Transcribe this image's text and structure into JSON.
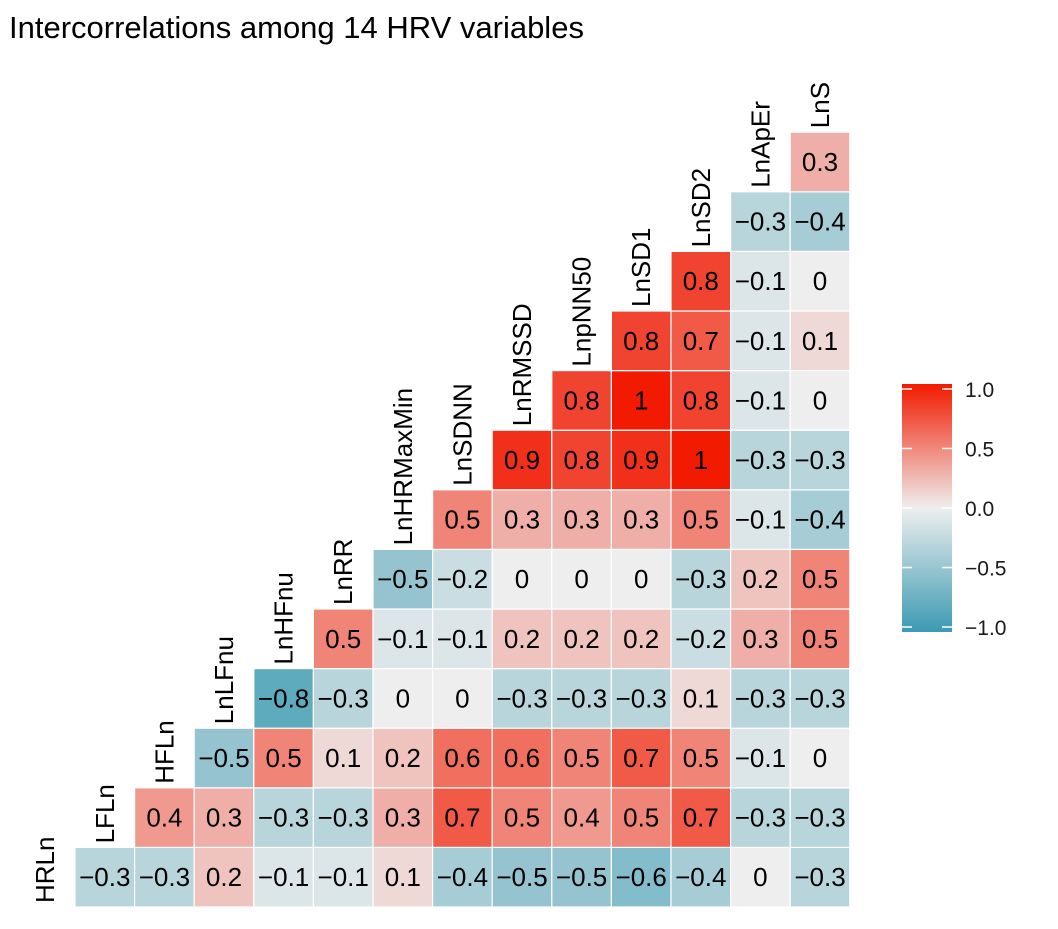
{
  "chart_data": {
    "type": "heatmap",
    "title": "Intercorrelations among 14 HRV variables",
    "subtype": "lower-triangle correlation matrix",
    "variables_displayed": [
      "HRLn",
      "LFLn",
      "HFLn",
      "LnLFnu",
      "LnHFnu",
      "LnRR",
      "LnHRMaxMin",
      "LnSDNN",
      "LnRMSSD",
      "LnpNN50",
      "LnSD1",
      "LnSD2",
      "LnApEr",
      "LnS"
    ],
    "rows": [
      {
        "label": "HRLn",
        "values": [
          -0.3,
          -0.3,
          0.2,
          -0.1,
          -0.1,
          0.1,
          -0.4,
          -0.5,
          -0.5,
          -0.6,
          -0.4,
          0,
          -0.3
        ]
      },
      {
        "label": "LFLn",
        "values": [
          0.4,
          0.3,
          -0.3,
          -0.3,
          0.3,
          0.7,
          0.5,
          0.4,
          0.5,
          0.7,
          -0.3,
          -0.3
        ]
      },
      {
        "label": "HFLn",
        "values": [
          -0.5,
          0.5,
          0.1,
          0.2,
          0.6,
          0.6,
          0.5,
          0.7,
          0.5,
          -0.1,
          0
        ]
      },
      {
        "label": "LnLFnu",
        "values": [
          -0.8,
          -0.3,
          0,
          0,
          -0.3,
          -0.3,
          -0.3,
          0.1,
          -0.3,
          -0.3
        ]
      },
      {
        "label": "LnHFnu",
        "values": [
          0.5,
          -0.1,
          -0.1,
          0.2,
          0.2,
          0.2,
          -0.2,
          0.3,
          0.5
        ]
      },
      {
        "label": "LnRR",
        "values": [
          -0.5,
          -0.2,
          0,
          0,
          0,
          -0.3,
          0.2,
          0.5
        ]
      },
      {
        "label": "LnHRMaxMin",
        "values": [
          0.5,
          0.3,
          0.3,
          0.3,
          0.5,
          -0.1,
          -0.4
        ]
      },
      {
        "label": "LnSDNN",
        "values": [
          0.9,
          0.8,
          0.9,
          1,
          -0.3,
          -0.3
        ]
      },
      {
        "label": "LnRMSSD",
        "values": [
          0.8,
          1,
          0.8,
          -0.1,
          0
        ]
      },
      {
        "label": "LnpNN50",
        "values": [
          0.8,
          0.7,
          -0.1,
          0.1
        ]
      },
      {
        "label": "LnSD1",
        "values": [
          0.8,
          -0.1,
          0
        ]
      },
      {
        "label": "LnSD2",
        "values": [
          -0.3,
          -0.4
        ]
      },
      {
        "label": "LnApEr",
        "values": [
          0.3
        ]
      },
      {
        "label": "LnS",
        "values": []
      }
    ],
    "value_labels": [
      "-0.3",
      "-0.3",
      "0.2",
      "-0.1",
      "-0.1",
      "0.1",
      "-0.4",
      "-0.5",
      "-0.5",
      "-0.6",
      "-0.4",
      "0",
      "-0.3"
    ],
    "color_scale": {
      "low": "#3B9AB2",
      "mid": "#EEEEEE",
      "high": "#F21A00",
      "limits": [
        -1,
        1
      ],
      "legend_ticks": [
        "1.0",
        "0.5",
        "0.0",
        "−0.5",
        "−1.0"
      ],
      "legend_tick_values": [
        1.0,
        0.5,
        0.0,
        -0.5,
        -1.0
      ],
      "legend_position": "right"
    },
    "grid": false
  }
}
